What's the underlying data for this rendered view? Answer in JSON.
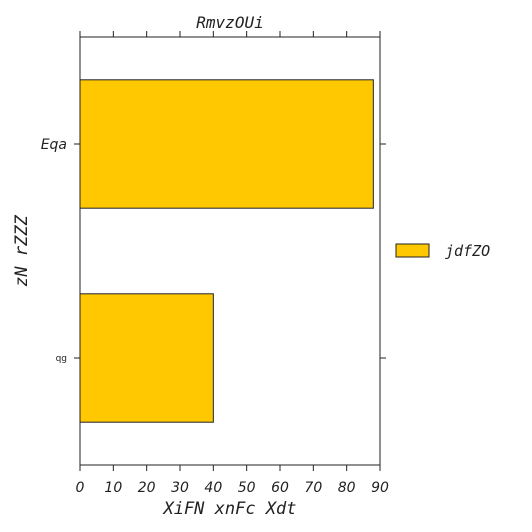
{
  "chart_data": {
    "type": "bar",
    "orientation": "horizontal",
    "title": "RmvzOUi",
    "xlabel": "XiFN xnFc Xdt",
    "ylabel": "zN rZZZ",
    "categories": [
      "Eqa",
      "qg"
    ],
    "series": [
      {
        "name": "jdfZO",
        "values": [
          88,
          40
        ],
        "color": "#ffc800"
      }
    ],
    "xlim": [
      0,
      90
    ],
    "xticks": [
      0,
      10,
      20,
      30,
      40,
      50,
      60,
      70,
      80,
      90
    ],
    "grid": false,
    "legend_position": "right"
  }
}
